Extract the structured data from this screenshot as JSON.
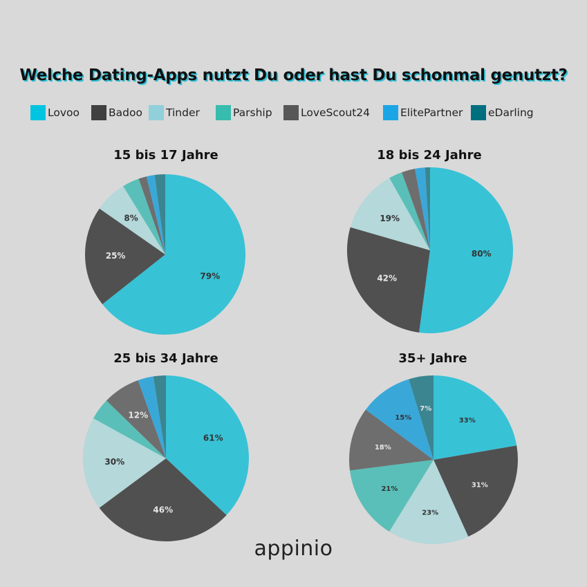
{
  "title": "Welche Dating-Apps nutzt Du oder hast Du schonmal genutzt?",
  "legend": [
    {
      "label": "Lovoo",
      "color": "#00c4e0"
    },
    {
      "label": "Badoo",
      "color": "#404040"
    },
    {
      "label": "Tinder",
      "color": "#91d0da"
    },
    {
      "label": "Parship",
      "color": "#37bcae"
    },
    {
      "label": "LoveScout24",
      "color": "#575757"
    },
    {
      "label": "ElitePartner",
      "color": "#1aa6e6"
    },
    {
      "label": "eDarling",
      "color": "#00707f"
    }
  ],
  "logo": "appinio",
  "chart_data": [
    {
      "type": "pie",
      "title": "15 bis 17 Jahre",
      "categories": [
        "Lovoo",
        "Badoo",
        "Tinder",
        "Parship",
        "LoveScout24",
        "ElitePartner",
        "eDarling"
      ],
      "values": [
        79,
        25,
        8,
        4.2,
        2,
        2,
        2.6
      ],
      "labels": [
        "79%",
        "25%",
        "8%",
        "",
        "",
        "",
        ""
      ],
      "colors": [
        "#38c2d6",
        "#505050",
        "#b5d8da",
        "#5abfb8",
        "#6e6e6e",
        "#3aa7d9",
        "#3a8590"
      ]
    },
    {
      "type": "pie",
      "title": "18  bis 24 Jahre",
      "categories": [
        "Lovoo",
        "Badoo",
        "Tinder",
        "Parship",
        "LoveScout24",
        "ElitePartner",
        "eDarling"
      ],
      "values": [
        80,
        42,
        19,
        4,
        4,
        3,
        1.5
      ],
      "labels": [
        "80%",
        "42%",
        "19%",
        "",
        "",
        "",
        ""
      ],
      "colors": [
        "#38c2d6",
        "#505050",
        "#b5d8da",
        "#5abfb8",
        "#6e6e6e",
        "#3aa7d9",
        "#3a8590"
      ]
    },
    {
      "type": "pie",
      "title": "25 bis 34 Jahre",
      "categories": [
        "Lovoo",
        "Badoo",
        "Tinder",
        "Parship",
        "LoveScout24",
        "ElitePartner",
        "eDarling"
      ],
      "values": [
        61,
        46,
        30,
        7,
        12,
        5,
        4
      ],
      "labels": [
        "61%",
        "46%",
        "30%",
        "",
        "12%",
        "",
        ""
      ],
      "colors": [
        "#38c2d6",
        "#505050",
        "#b5d8da",
        "#5abfb8",
        "#6e6e6e",
        "#3aa7d9",
        "#3a8590"
      ]
    },
    {
      "type": "pie",
      "title": "35+ Jahre",
      "categories": [
        "Lovoo",
        "Badoo",
        "Tinder",
        "Parship",
        "LoveScout24",
        "ElitePartner",
        "eDarling"
      ],
      "values": [
        33,
        31,
        23,
        21,
        18,
        15,
        7
      ],
      "labels": [
        "33%",
        "31%",
        "23%",
        "21%",
        "18%",
        "15%",
        "7%"
      ],
      "colors": [
        "#38c2d6",
        "#505050",
        "#b5d8da",
        "#5abfb8",
        "#6e6e6e",
        "#3aa7d9",
        "#3a8590"
      ]
    }
  ]
}
